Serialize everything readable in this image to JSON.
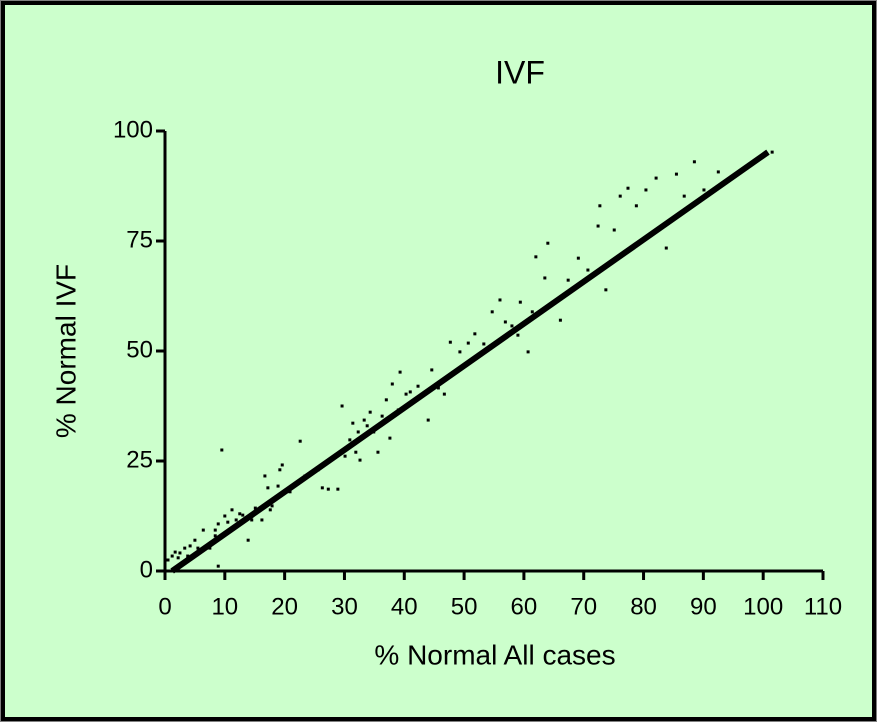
{
  "chart_data": {
    "type": "scatter",
    "title": "IVF",
    "x_label": "% Normal All cases",
    "y_label": "% Normal IVF",
    "x": [
      0,
      0,
      0.5,
      1.2,
      1.7,
      2.2,
      2.5,
      3.3,
      3.8,
      4.2,
      5.0,
      5.5,
      6.4,
      7.5,
      8.4,
      8.4,
      8.9,
      8.9,
      9.5,
      10.0,
      10.5,
      11.2,
      11.9,
      12.5,
      13.0,
      13.9,
      14.5,
      15.1,
      16.2,
      16.7,
      17.2,
      17.6,
      17.9,
      18.4,
      18.9,
      19.2,
      19.6,
      20.2,
      20.9,
      21.4,
      22.6,
      23.4,
      24.2,
      25.6,
      26.3,
      27.3,
      28.9,
      29.6,
      30.1,
      30.9,
      31.4,
      31.9,
      32.3,
      32.6,
      33.3,
      33.8,
      34.3,
      34.9,
      35.6,
      36.3,
      37.0,
      37.6,
      38.0,
      38.3,
      39.0,
      39.3,
      40.3,
      41.0,
      42.3,
      44.0,
      44.6,
      45.7,
      46.7,
      47.7,
      49.3,
      50.7,
      51.8,
      53.3,
      54.7,
      56.0,
      56.9,
      58.0,
      59.0,
      59.4,
      60.7,
      61.4,
      62.0,
      63.5,
      64.0,
      64.7,
      66.1,
      67.4,
      69.1,
      70.7,
      72.4,
      72.7,
      73.7,
      75.1,
      76.1,
      77.4,
      78.8,
      80.4,
      82.1,
      83.8,
      85.5,
      86.8,
      88.5,
      90.1,
      92.5,
      101.5
    ],
    "values": [
      9.3,
      5.2,
      2.5,
      3.4,
      4.3,
      3.0,
      4.1,
      5.2,
      3.4,
      5.7,
      7.0,
      5.2,
      9.3,
      5.2,
      8.0,
      9.3,
      10.7,
      1.1,
      27.5,
      12.5,
      11.1,
      13.9,
      11.6,
      13.0,
      12.7,
      7.0,
      11.6,
      14.3,
      11.6,
      21.6,
      18.9,
      13.9,
      14.8,
      16.6,
      19.3,
      23.0,
      24.1,
      18.4,
      18.0,
      19.3,
      29.5,
      21.6,
      22.0,
      23.0,
      18.9,
      18.6,
      18.6,
      37.5,
      26.1,
      29.8,
      33.6,
      27.0,
      31.6,
      25.2,
      34.3,
      33.0,
      36.1,
      31.6,
      27.0,
      35.2,
      38.9,
      30.2,
      42.5,
      35.7,
      36.6,
      45.2,
      40.2,
      40.7,
      42.0,
      34.3,
      45.7,
      41.6,
      40.2,
      52.0,
      49.8,
      51.8,
      53.9,
      51.6,
      58.9,
      61.6,
      56.6,
      55.7,
      53.6,
      61.1,
      49.8,
      58.9,
      71.4,
      66.6,
      74.5,
      60.5,
      57.0,
      66.1,
      71.1,
      68.4,
      78.4,
      83.0,
      63.9,
      77.5,
      85.2,
      87.0,
      83.0,
      86.6,
      89.3,
      73.4,
      90.2,
      85.2,
      93.0,
      86.6,
      90.7,
      95.2
    ],
    "color": "#000000",
    "fit_line": {
      "x": [
        1.2,
        100.8
      ],
      "values": [
        0,
        95.2
      ],
      "color": "#000000"
    },
    "xlim": [
      0,
      110
    ],
    "ylim": [
      0,
      100
    ],
    "xticks": [
      0,
      10,
      20,
      30,
      40,
      50,
      60,
      70,
      80,
      90,
      100,
      110
    ],
    "yticks": [
      0,
      25,
      50,
      75,
      100
    ],
    "background": "#ccffcc"
  }
}
